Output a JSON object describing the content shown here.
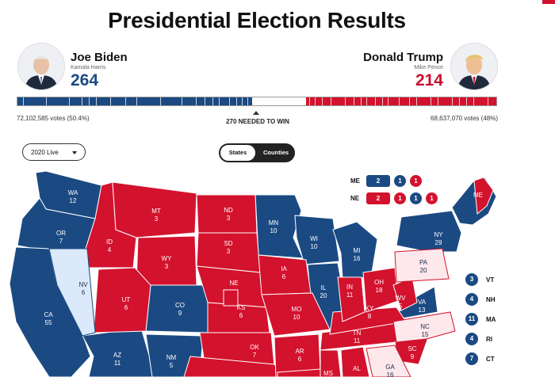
{
  "title": "Presidential Election Results",
  "candidates": {
    "left": {
      "name": "Joe Biden",
      "running_mate": "Kamala Harris",
      "electoral_votes": "264",
      "popular_votes": "72,102,585 votes (50.4%)",
      "color": "#1b4a83"
    },
    "right": {
      "name": "Donald Trump",
      "running_mate": "Mike Pence",
      "electoral_votes": "214",
      "popular_votes": "68,637,070 votes (48%)",
      "color": "#d3122d"
    }
  },
  "progress": {
    "total": 538,
    "dem": 264,
    "rep": 214
  },
  "threshold_label": "270 NEEDED TO WIN",
  "controls": {
    "year_select": "2020 Live",
    "view_toggle": {
      "states": "States",
      "counties": "Counties",
      "active": "Counties"
    }
  },
  "split_states": {
    "ME": {
      "label": "ME",
      "total": "2",
      "districts": [
        "1",
        "1"
      ],
      "colors": [
        "blue",
        "blue",
        "red"
      ]
    },
    "NE": {
      "label": "NE",
      "total": "2",
      "districts": [
        "1",
        "1",
        "1"
      ],
      "colors": [
        "red",
        "red",
        "blue",
        "red"
      ]
    }
  },
  "states": {
    "WA": "12",
    "OR": "7",
    "CA": "55",
    "NV": "6",
    "ID": "4",
    "MT": "3",
    "WY": "3",
    "UT": "6",
    "AZ": "11",
    "CO": "9",
    "NM": "5",
    "ND": "3",
    "SD": "3",
    "NE": "",
    "KS": "6",
    "OK": "7",
    "MN": "10",
    "IA": "6",
    "MO": "10",
    "AR": "6",
    "WI": "10",
    "IL": "20",
    "MI": "16",
    "IN": "11",
    "OH": "18",
    "KY": "8",
    "TN": "11",
    "MS": "",
    "AL": "",
    "GA": "16",
    "SC": "9",
    "NC": "15",
    "VA": "13",
    "WV": "5",
    "PA": "20",
    "NY": "29",
    "ME": ""
  },
  "small_states": [
    {
      "abbr": "VT",
      "ev": "3",
      "color": "blue"
    },
    {
      "abbr": "NH",
      "ev": "4",
      "color": "blue"
    },
    {
      "abbr": "MA",
      "ev": "11",
      "color": "blue"
    },
    {
      "abbr": "RI",
      "ev": "4",
      "color": "blue"
    },
    {
      "abbr": "CT",
      "ev": "7",
      "color": "blue"
    }
  ],
  "colors": {
    "dem": "#1b4a83",
    "rep": "#d3122d",
    "lean_dem": "#dbe9fb",
    "lean_rep": "#fde8ec"
  }
}
